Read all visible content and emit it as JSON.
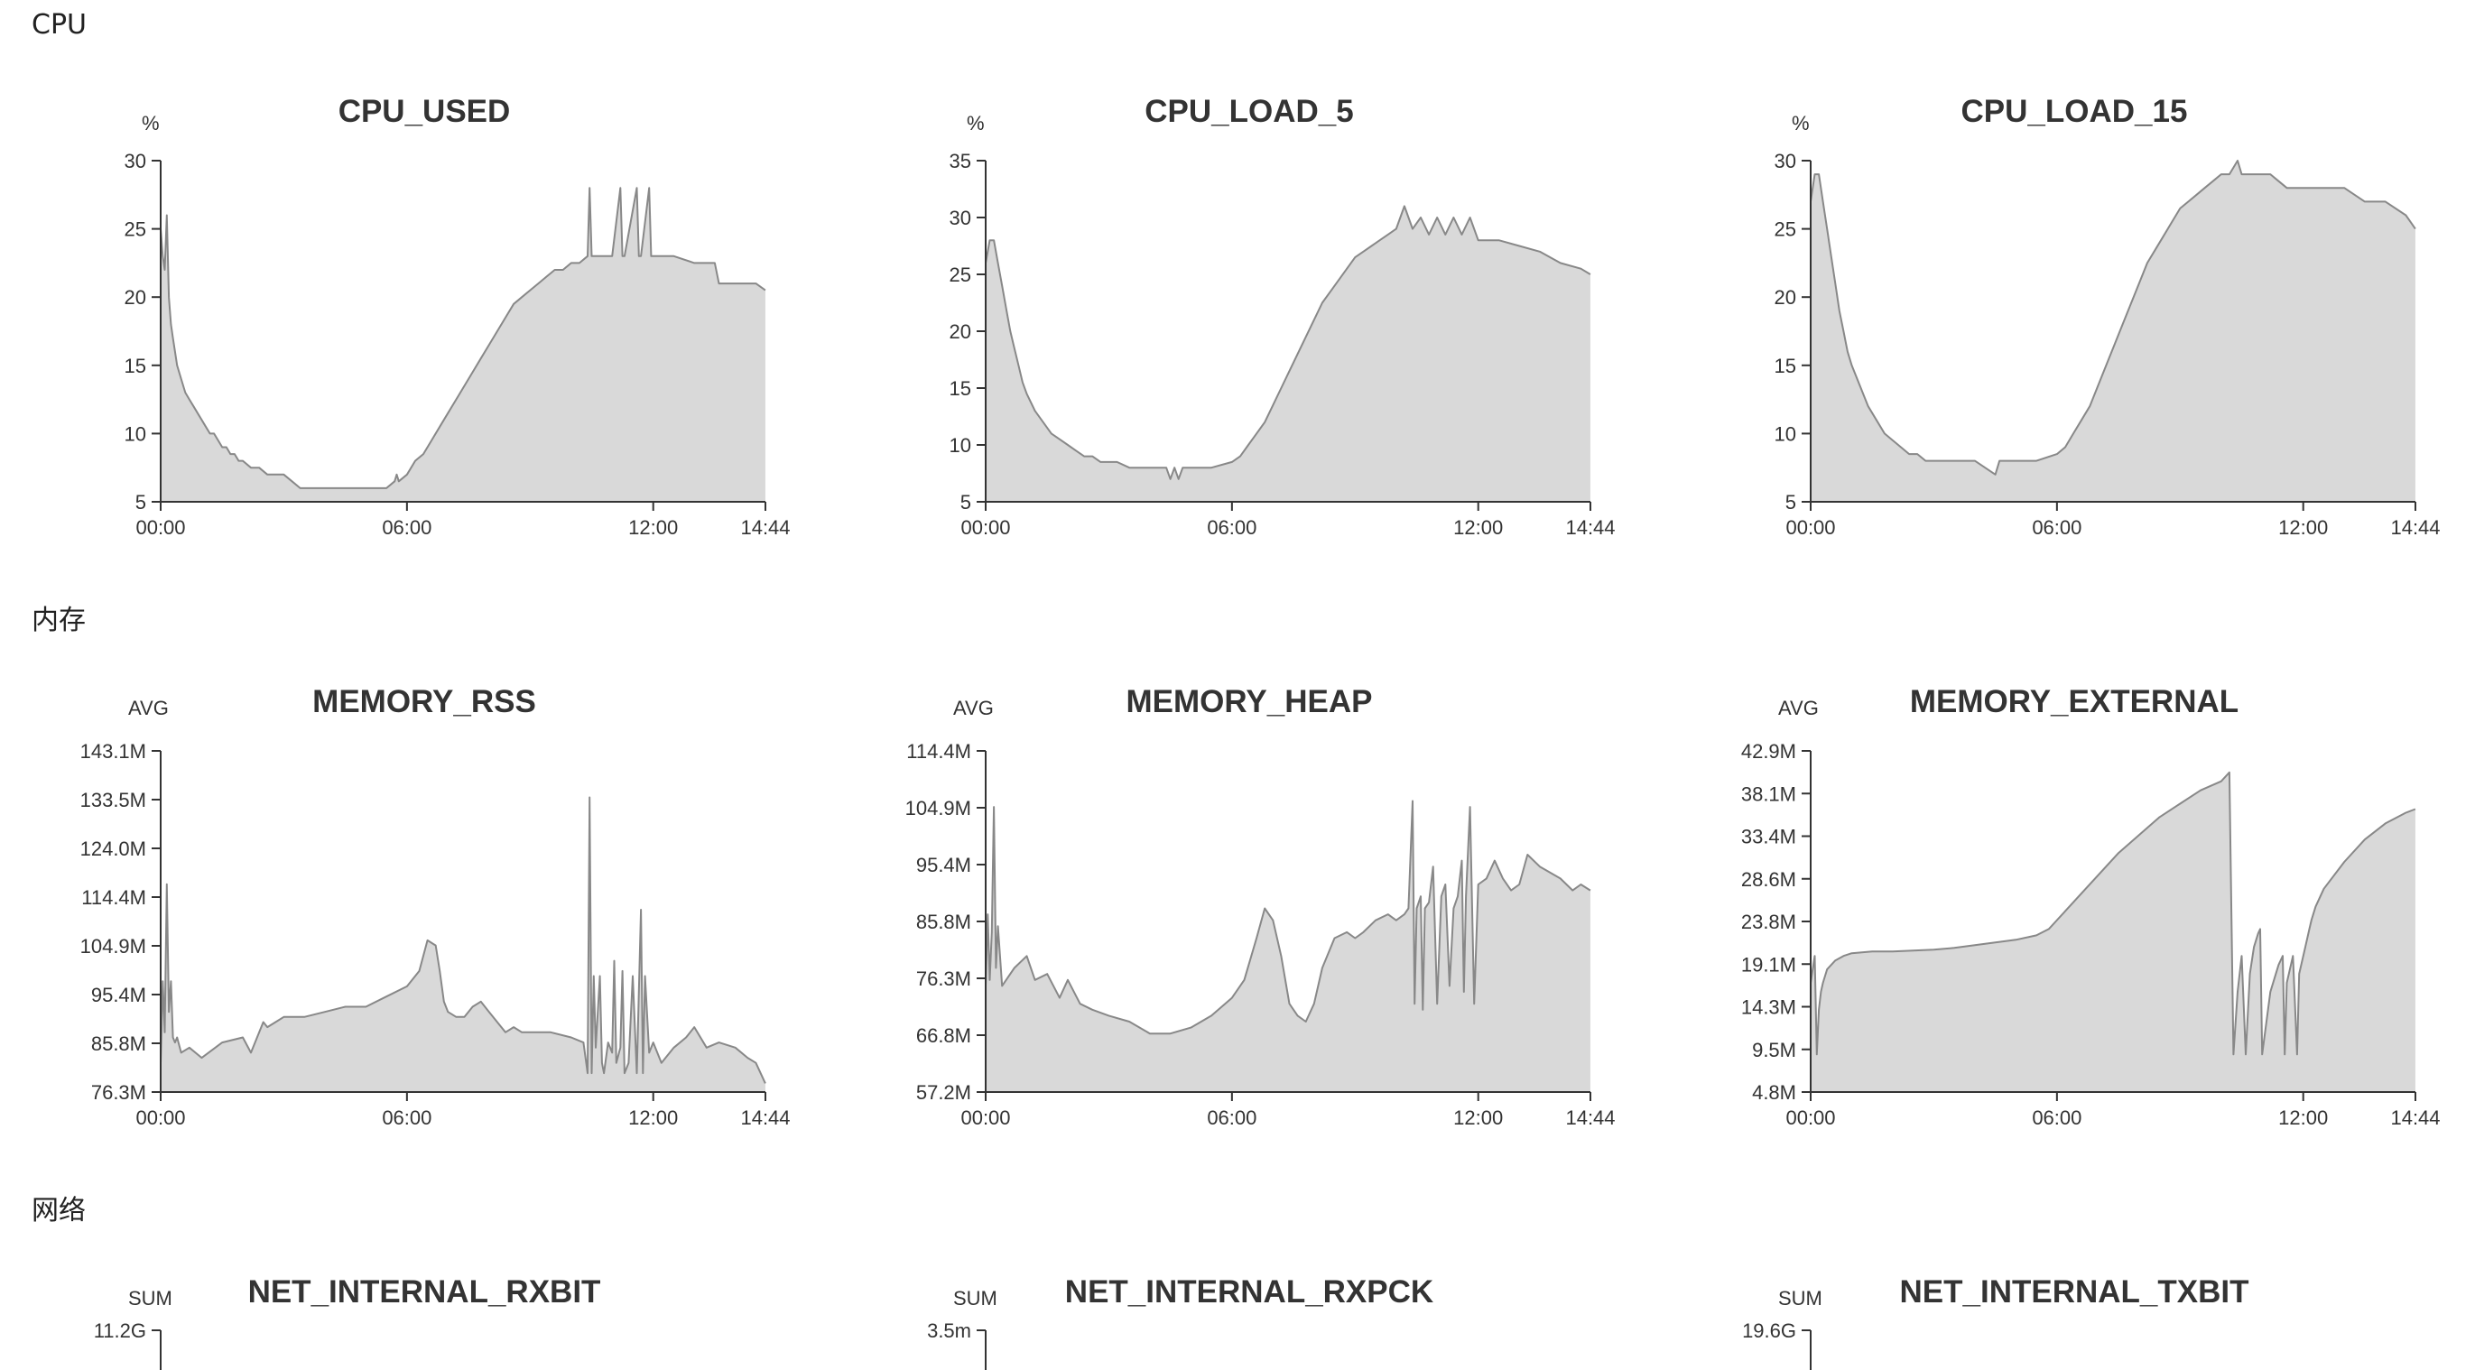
{
  "sections": [
    {
      "title": "CPU"
    },
    {
      "title": "内存"
    },
    {
      "title": "网络"
    }
  ],
  "style": {
    "fill": "#d9d9d9",
    "stroke": "#888888",
    "axis": "#333333"
  },
  "chart_data": [
    {
      "type": "area",
      "title": "CPU_USED",
      "ylabel": "%",
      "x_ticks": [
        "00:00",
        "06:00",
        "12:00",
        "14:44"
      ],
      "x_range_hours": [
        0,
        14.733
      ],
      "ylim": [
        5,
        30
      ],
      "y_ticks": [
        "5",
        "10",
        "15",
        "20",
        "25",
        "30"
      ],
      "series": [
        {
          "x_hours": [
            0,
            0.05,
            0.1,
            0.15,
            0.2,
            0.25,
            0.3,
            0.35,
            0.4,
            0.5,
            0.6,
            0.7,
            0.8,
            0.9,
            1.0,
            1.1,
            1.2,
            1.3,
            1.4,
            1.5,
            1.6,
            1.7,
            1.8,
            1.9,
            2.0,
            2.2,
            2.4,
            2.6,
            2.8,
            3.0,
            3.2,
            3.4,
            3.6,
            3.8,
            4.0,
            4.5,
            5.0,
            5.5,
            5.7,
            5.75,
            5.8,
            6.0,
            6.2,
            6.4,
            6.6,
            6.8,
            7.0,
            7.2,
            7.4,
            7.6,
            7.8,
            8.0,
            8.2,
            8.4,
            8.6,
            8.8,
            9.0,
            9.2,
            9.4,
            9.6,
            9.8,
            10.0,
            10.2,
            10.4,
            10.45,
            10.5,
            10.8,
            11.0,
            11.2,
            11.25,
            11.3,
            11.6,
            11.65,
            11.7,
            11.9,
            11.95,
            12.0,
            12.5,
            13.0,
            13.5,
            13.6,
            14.0,
            14.5,
            14.73
          ],
          "values": [
            25,
            23,
            22,
            26,
            20,
            18,
            17,
            16,
            15,
            14,
            13,
            12.5,
            12,
            11.5,
            11,
            10.5,
            10,
            10,
            9.5,
            9,
            9,
            8.5,
            8.5,
            8,
            8,
            7.5,
            7.5,
            7,
            7,
            7,
            6.5,
            6,
            6,
            6,
            6,
            6,
            6,
            6,
            6.5,
            7,
            6.5,
            7,
            8,
            8.5,
            9.5,
            10.5,
            11.5,
            12.5,
            13.5,
            14.5,
            15.5,
            16.5,
            17.5,
            18.5,
            19.5,
            20,
            20.5,
            21,
            21.5,
            22,
            22,
            22.5,
            22.5,
            23,
            28,
            23,
            23,
            23,
            28,
            23,
            23,
            28,
            23,
            23,
            28,
            23,
            23,
            23,
            22.5,
            22.5,
            21,
            21,
            21,
            20.5
          ]
        }
      ]
    },
    {
      "type": "area",
      "title": "CPU_LOAD_5",
      "ylabel": "%",
      "x_ticks": [
        "00:00",
        "06:00",
        "12:00",
        "14:44"
      ],
      "x_range_hours": [
        0,
        14.733
      ],
      "ylim": [
        5,
        35
      ],
      "y_ticks": [
        "5",
        "10",
        "15",
        "20",
        "25",
        "30",
        "35"
      ],
      "series": [
        {
          "x_hours": [
            0,
            0.1,
            0.2,
            0.3,
            0.4,
            0.5,
            0.6,
            0.7,
            0.8,
            0.9,
            1.0,
            1.2,
            1.4,
            1.6,
            1.8,
            2.0,
            2.2,
            2.4,
            2.6,
            2.8,
            3.0,
            3.2,
            3.5,
            4.0,
            4.2,
            4.4,
            4.5,
            4.6,
            4.7,
            4.8,
            5.0,
            5.5,
            6.0,
            6.2,
            6.4,
            6.6,
            6.8,
            7.0,
            7.2,
            7.4,
            7.6,
            7.8,
            8.0,
            8.2,
            8.4,
            8.6,
            8.8,
            9.0,
            9.2,
            9.4,
            9.6,
            9.8,
            10.0,
            10.2,
            10.4,
            10.6,
            10.8,
            11.0,
            11.2,
            11.4,
            11.6,
            11.8,
            12.0,
            12.5,
            13.0,
            13.5,
            14.0,
            14.5,
            14.73
          ],
          "values": [
            26,
            28,
            28,
            26,
            24,
            22,
            20,
            18.5,
            17,
            15.5,
            14.5,
            13,
            12,
            11,
            10.5,
            10,
            9.5,
            9,
            9,
            8.5,
            8.5,
            8.5,
            8,
            8,
            8,
            8,
            7,
            8,
            7,
            8,
            8,
            8,
            8.5,
            9,
            10,
            11,
            12,
            13.5,
            15,
            16.5,
            18,
            19.5,
            21,
            22.5,
            23.5,
            24.5,
            25.5,
            26.5,
            27,
            27.5,
            28,
            28.5,
            29,
            31,
            29,
            30,
            28.5,
            30,
            28.5,
            30,
            28.5,
            30,
            28,
            28,
            27.5,
            27,
            26,
            25.5,
            25
          ]
        }
      ]
    },
    {
      "type": "area",
      "title": "CPU_LOAD_15",
      "ylabel": "%",
      "x_ticks": [
        "00:00",
        "06:00",
        "12:00",
        "14:44"
      ],
      "x_range_hours": [
        0,
        14.733
      ],
      "ylim": [
        5,
        30
      ],
      "y_ticks": [
        "5",
        "10",
        "15",
        "20",
        "25",
        "30"
      ],
      "series": [
        {
          "x_hours": [
            0,
            0.1,
            0.2,
            0.3,
            0.4,
            0.5,
            0.6,
            0.7,
            0.8,
            0.9,
            1.0,
            1.2,
            1.4,
            1.6,
            1.8,
            2.0,
            2.2,
            2.4,
            2.6,
            2.8,
            3.0,
            3.2,
            3.5,
            4.0,
            4.5,
            4.6,
            5.0,
            5.5,
            6.0,
            6.2,
            6.4,
            6.6,
            6.8,
            7.0,
            7.2,
            7.4,
            7.6,
            7.8,
            8.0,
            8.2,
            8.4,
            8.6,
            8.8,
            9.0,
            9.2,
            9.4,
            9.6,
            9.8,
            10.0,
            10.2,
            10.4,
            10.5,
            10.6,
            10.8,
            11.0,
            11.2,
            11.4,
            11.6,
            12.0,
            12.5,
            13.0,
            13.5,
            14.0,
            14.5,
            14.73
          ],
          "values": [
            27,
            29,
            29,
            27,
            25,
            23,
            21,
            19,
            17.5,
            16,
            15,
            13.5,
            12,
            11,
            10,
            9.5,
            9,
            8.5,
            8.5,
            8,
            8,
            8,
            8,
            8,
            7,
            8,
            8,
            8,
            8.5,
            9,
            10,
            11,
            12,
            13.5,
            15,
            16.5,
            18,
            19.5,
            21,
            22.5,
            23.5,
            24.5,
            25.5,
            26.5,
            27,
            27.5,
            28,
            28.5,
            29,
            29,
            30,
            29,
            29,
            29,
            29,
            29,
            28.5,
            28,
            28,
            28,
            28,
            27,
            27,
            26,
            25
          ]
        }
      ]
    },
    {
      "type": "area",
      "title": "MEMORY_RSS",
      "ylabel": "AVG",
      "x_ticks": [
        "00:00",
        "06:00",
        "12:00",
        "14:44"
      ],
      "x_range_hours": [
        0,
        14.733
      ],
      "ylim": [
        76.3,
        143.1
      ],
      "y_ticks": [
        "76.3M",
        "85.8M",
        "95.4M",
        "104.9M",
        "114.4M",
        "124.0M",
        "133.5M",
        "143.1M"
      ],
      "series": [
        {
          "x_hours": [
            0,
            0.05,
            0.1,
            0.15,
            0.2,
            0.25,
            0.3,
            0.35,
            0.4,
            0.5,
            0.7,
            1.0,
            1.5,
            2.0,
            2.2,
            2.5,
            2.6,
            2.8,
            3.0,
            3.5,
            4.0,
            4.5,
            5.0,
            5.5,
            6.0,
            6.3,
            6.5,
            6.7,
            6.8,
            6.9,
            7.0,
            7.2,
            7.4,
            7.6,
            7.8,
            8.0,
            8.2,
            8.4,
            8.6,
            8.8,
            9.0,
            9.5,
            10.0,
            10.3,
            10.4,
            10.45,
            10.5,
            10.55,
            10.6,
            10.7,
            10.75,
            10.8,
            10.9,
            11.0,
            11.05,
            11.1,
            11.2,
            11.25,
            11.3,
            11.4,
            11.5,
            11.6,
            11.7,
            11.75,
            11.8,
            11.9,
            12.0,
            12.2,
            12.5,
            12.8,
            13.0,
            13.3,
            13.6,
            14.0,
            14.3,
            14.5,
            14.73
          ],
          "values": [
            82,
            98,
            88,
            117,
            92,
            98,
            87,
            86,
            87,
            84,
            85,
            83,
            86,
            87,
            84,
            90,
            89,
            90,
            91,
            91,
            92,
            93,
            93,
            95,
            97,
            100,
            106,
            105,
            100,
            94,
            92,
            91,
            91,
            93,
            94,
            92,
            90,
            88,
            89,
            88,
            88,
            88,
            87,
            86,
            80,
            134,
            80,
            99,
            85,
            99,
            82,
            80,
            86,
            84,
            102,
            82,
            85,
            100,
            80,
            82,
            99,
            80,
            112,
            80,
            99,
            84,
            86,
            82,
            85,
            87,
            89,
            85,
            86,
            85,
            83,
            82,
            78
          ]
        }
      ]
    },
    {
      "type": "area",
      "title": "MEMORY_HEAP",
      "ylabel": "AVG",
      "x_ticks": [
        "00:00",
        "06:00",
        "12:00",
        "14:44"
      ],
      "x_range_hours": [
        0,
        14.733
      ],
      "ylim": [
        57.2,
        114.4
      ],
      "y_ticks": [
        "57.2M",
        "66.8M",
        "76.3M",
        "85.8M",
        "95.4M",
        "104.9M",
        "114.4M"
      ],
      "series": [
        {
          "x_hours": [
            0,
            0.05,
            0.1,
            0.15,
            0.2,
            0.25,
            0.3,
            0.4,
            0.5,
            0.7,
            1.0,
            1.2,
            1.5,
            1.8,
            2.0,
            2.3,
            2.6,
            3.0,
            3.5,
            4.0,
            4.5,
            5.0,
            5.5,
            6.0,
            6.3,
            6.6,
            6.8,
            7.0,
            7.2,
            7.4,
            7.6,
            7.8,
            8.0,
            8.2,
            8.5,
            8.8,
            9.0,
            9.2,
            9.5,
            9.8,
            10.0,
            10.2,
            10.3,
            10.4,
            10.45,
            10.5,
            10.6,
            10.65,
            10.7,
            10.8,
            10.9,
            11.0,
            11.1,
            11.2,
            11.3,
            11.4,
            11.5,
            11.6,
            11.65,
            11.7,
            11.8,
            11.9,
            12.0,
            12.2,
            12.4,
            12.6,
            12.8,
            13.0,
            13.2,
            13.5,
            14.0,
            14.3,
            14.5,
            14.73
          ],
          "values": [
            75,
            87,
            76,
            84,
            105,
            78,
            85,
            75,
            76,
            78,
            80,
            76,
            77,
            73,
            76,
            72,
            71,
            70,
            69,
            67,
            67,
            68,
            70,
            73,
            76,
            83,
            88,
            86,
            80,
            72,
            70,
            69,
            72,
            78,
            83,
            84,
            83,
            84,
            86,
            87,
            86,
            87,
            88,
            106,
            72,
            88,
            90,
            71,
            88,
            89,
            95,
            72,
            90,
            92,
            75,
            88,
            90,
            96,
            74,
            90,
            105,
            72,
            92,
            93,
            96,
            93,
            91,
            92,
            97,
            95,
            93,
            91,
            92,
            91
          ]
        }
      ]
    },
    {
      "type": "area",
      "title": "MEMORY_EXTERNAL",
      "ylabel": "AVG",
      "x_ticks": [
        "00:00",
        "06:00",
        "12:00",
        "14:44"
      ],
      "x_range_hours": [
        0,
        14.733
      ],
      "ylim": [
        4.8,
        42.9
      ],
      "y_ticks": [
        "4.8M",
        "9.5M",
        "14.3M",
        "19.1M",
        "23.8M",
        "28.6M",
        "33.4M",
        "38.1M",
        "42.9M"
      ],
      "series": [
        {
          "x_hours": [
            0,
            0.1,
            0.15,
            0.2,
            0.25,
            0.3,
            0.4,
            0.6,
            0.8,
            1.0,
            1.5,
            2.0,
            2.5,
            3.0,
            3.5,
            4.0,
            4.5,
            5.0,
            5.5,
            5.8,
            6.0,
            6.2,
            6.5,
            7.0,
            7.5,
            8.0,
            8.5,
            9.0,
            9.5,
            10.0,
            10.2,
            10.25,
            10.3,
            10.4,
            10.5,
            10.6,
            10.7,
            10.8,
            10.9,
            10.95,
            11.0,
            11.2,
            11.4,
            11.5,
            11.55,
            11.6,
            11.75,
            11.85,
            11.9,
            12.05,
            12.15,
            12.2,
            12.3,
            12.5,
            13.0,
            13.5,
            14.0,
            14.5,
            14.73
          ],
          "values": [
            17,
            20,
            9,
            14,
            16,
            17,
            18.5,
            19.5,
            20,
            20.3,
            20.5,
            20.5,
            20.6,
            20.7,
            20.9,
            21.2,
            21.5,
            21.8,
            22.3,
            23,
            24,
            25,
            26.5,
            29,
            31.5,
            33.5,
            35.5,
            37,
            38.5,
            39.5,
            40.5,
            25,
            9,
            16,
            20,
            9,
            18,
            21,
            22.5,
            23,
            9,
            16,
            19,
            20,
            9,
            17,
            20,
            9,
            18,
            21,
            23,
            24,
            25.5,
            27.5,
            30.5,
            33,
            34.8,
            36,
            36.4
          ]
        }
      ]
    },
    {
      "type": "area",
      "title": "NET_INTERNAL_RXBIT",
      "ylabel": "SUM",
      "y_ticks": [
        "11.2G"
      ],
      "series": []
    },
    {
      "type": "area",
      "title": "NET_INTERNAL_RXPCK",
      "ylabel": "SUM",
      "y_ticks": [
        "3.5m"
      ],
      "series": []
    },
    {
      "type": "area",
      "title": "NET_INTERNAL_TXBIT",
      "ylabel": "SUM",
      "y_ticks": [
        "19.6G"
      ],
      "series": []
    }
  ]
}
